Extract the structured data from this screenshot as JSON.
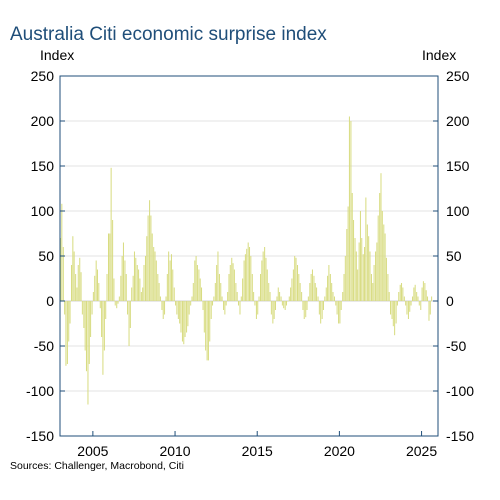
{
  "title": "Australia Citi economic surprise index",
  "source": "Sources: Challenger, Macrobond, Citi",
  "colors": {
    "bar": "#d8dc82",
    "frame": "#1f4e79",
    "grid": "#e3e3e3",
    "title": "#1f4e79"
  },
  "chart_data": {
    "type": "bar",
    "title": "Australia Citi economic surprise index",
    "ylabel_left": "Index",
    "ylabel_right": "Index",
    "ylim": [
      -150,
      250
    ],
    "y_ticks": [
      -150,
      -100,
      -50,
      0,
      50,
      100,
      150,
      200,
      250
    ],
    "xlim": [
      2003.0,
      2026.0
    ],
    "x_ticks": [
      2005,
      2010,
      2015,
      2020,
      2025
    ],
    "grid": true,
    "legend": "none",
    "series": [
      {
        "x": [
          2003.0,
          2003.08,
          2003.17,
          2003.25,
          2003.33,
          2003.42,
          2003.5,
          2003.58,
          2003.67,
          2003.75,
          2003.83,
          2003.92,
          2004.0,
          2004.08,
          2004.17,
          2004.25,
          2004.33,
          2004.42,
          2004.5,
          2004.58,
          2004.67,
          2004.75,
          2004.83,
          2004.92,
          2005.0,
          2005.08,
          2005.17,
          2005.25,
          2005.33,
          2005.42,
          2005.5,
          2005.58,
          2005.67,
          2005.75,
          2005.83,
          2005.92,
          2006.0,
          2006.08,
          2006.17,
          2006.25,
          2006.33,
          2006.42,
          2006.5,
          2006.58,
          2006.67,
          2006.75,
          2006.83,
          2006.92,
          2007.0,
          2007.08,
          2007.17,
          2007.25,
          2007.33,
          2007.42,
          2007.5,
          2007.58,
          2007.67,
          2007.75,
          2007.83,
          2007.92,
          2008.0,
          2008.08,
          2008.17,
          2008.25,
          2008.33,
          2008.42,
          2008.5,
          2008.58,
          2008.67,
          2008.75,
          2008.83,
          2008.92,
          2009.0,
          2009.08,
          2009.17,
          2009.25,
          2009.33,
          2009.42,
          2009.5,
          2009.58,
          2009.67,
          2009.75,
          2009.83,
          2009.92,
          2010.0,
          2010.08,
          2010.17,
          2010.25,
          2010.33,
          2010.42,
          2010.5,
          2010.58,
          2010.67,
          2010.75,
          2010.83,
          2010.92,
          2011.0,
          2011.08,
          2011.17,
          2011.25,
          2011.33,
          2011.42,
          2011.5,
          2011.58,
          2011.67,
          2011.75,
          2011.83,
          2011.92,
          2012.0,
          2012.08,
          2012.17,
          2012.25,
          2012.33,
          2012.42,
          2012.5,
          2012.58,
          2012.67,
          2012.75,
          2012.83,
          2012.92,
          2013.0,
          2013.08,
          2013.17,
          2013.25,
          2013.33,
          2013.42,
          2013.5,
          2013.58,
          2013.67,
          2013.75,
          2013.83,
          2013.92,
          2014.0,
          2014.08,
          2014.17,
          2014.25,
          2014.33,
          2014.42,
          2014.5,
          2014.58,
          2014.67,
          2014.75,
          2014.83,
          2014.92,
          2015.0,
          2015.08,
          2015.17,
          2015.25,
          2015.33,
          2015.42,
          2015.5,
          2015.58,
          2015.67,
          2015.75,
          2015.83,
          2015.92,
          2016.0,
          2016.08,
          2016.17,
          2016.25,
          2016.33,
          2016.42,
          2016.5,
          2016.58,
          2016.67,
          2016.75,
          2016.83,
          2016.92,
          2017.0,
          2017.08,
          2017.17,
          2017.25,
          2017.33,
          2017.42,
          2017.5,
          2017.58,
          2017.67,
          2017.75,
          2017.83,
          2017.92,
          2018.0,
          2018.08,
          2018.17,
          2018.25,
          2018.33,
          2018.42,
          2018.5,
          2018.58,
          2018.67,
          2018.75,
          2018.83,
          2018.92,
          2019.0,
          2019.08,
          2019.17,
          2019.25,
          2019.33,
          2019.42,
          2019.5,
          2019.58,
          2019.67,
          2019.75,
          2019.83,
          2019.92,
          2020.0,
          2020.08,
          2020.17,
          2020.25,
          2020.33,
          2020.42,
          2020.5,
          2020.58,
          2020.67,
          2020.75,
          2020.83,
          2020.92,
          2021.0,
          2021.08,
          2021.17,
          2021.25,
          2021.33,
          2021.42,
          2021.5,
          2021.58,
          2021.67,
          2021.75,
          2021.83,
          2021.92,
          2022.0,
          2022.08,
          2022.17,
          2022.25,
          2022.33,
          2022.42,
          2022.5,
          2022.58,
          2022.67,
          2022.75,
          2022.83,
          2022.92,
          2023.0,
          2023.08,
          2023.17,
          2023.25,
          2023.33,
          2023.42,
          2023.5,
          2023.58,
          2023.67,
          2023.75,
          2023.83,
          2023.92,
          2024.0,
          2024.08,
          2024.17,
          2024.25,
          2024.33,
          2024.42,
          2024.5,
          2024.58,
          2024.67,
          2024.75,
          2024.83,
          2024.92,
          2025.0,
          2025.08,
          2025.17,
          2025.25,
          2025.33,
          2025.42,
          2025.5,
          2025.58
        ],
        "values": [
          70,
          108,
          60,
          -15,
          -72,
          -70,
          -45,
          -25,
          40,
          72,
          55,
          30,
          15,
          40,
          48,
          32,
          -15,
          -30,
          -55,
          -78,
          -115,
          -70,
          -40,
          -15,
          10,
          28,
          45,
          35,
          20,
          -8,
          -40,
          -82,
          -55,
          -20,
          30,
          75,
          75,
          148,
          90,
          25,
          -5,
          -8,
          -3,
          5,
          28,
          50,
          65,
          45,
          30,
          -15,
          -50,
          -30,
          15,
          28,
          55,
          48,
          40,
          35,
          25,
          10,
          15,
          40,
          50,
          72,
          95,
          112,
          95,
          75,
          60,
          55,
          45,
          30,
          20,
          5,
          -10,
          -20,
          -15,
          5,
          30,
          55,
          45,
          52,
          35,
          15,
          -5,
          -15,
          -20,
          -25,
          -35,
          -45,
          -48,
          -40,
          -35,
          -28,
          -15,
          -5,
          5,
          20,
          45,
          50,
          40,
          35,
          25,
          15,
          -10,
          -35,
          -55,
          -66,
          -66,
          -45,
          -20,
          -5,
          5,
          20,
          40,
          55,
          30,
          20,
          5,
          -10,
          -15,
          -5,
          10,
          30,
          40,
          48,
          42,
          35,
          20,
          10,
          -5,
          -15,
          5,
          25,
          45,
          52,
          58,
          65,
          60,
          50,
          30,
          10,
          -5,
          -20,
          -15,
          5,
          30,
          45,
          55,
          60,
          48,
          35,
          20,
          10,
          -15,
          -25,
          -20,
          -10,
          5,
          15,
          10,
          5,
          -5,
          -8,
          -10,
          -5,
          0,
          5,
          15,
          25,
          35,
          50,
          48,
          40,
          30,
          20,
          10,
          -10,
          -20,
          -18,
          -10,
          5,
          20,
          30,
          35,
          28,
          20,
          15,
          5,
          -15,
          -25,
          -20,
          -10,
          5,
          15,
          28,
          40,
          30,
          20,
          10,
          5,
          -5,
          -15,
          -25,
          -25,
          -10,
          10,
          30,
          50,
          80,
          105,
          205,
          200,
          120,
          90,
          70,
          55,
          35,
          65,
          100,
          70,
          52,
          60,
          115,
          85,
          72,
          55,
          30,
          20,
          40,
          55,
          65,
          95,
          120,
          142,
          100,
          85,
          75,
          48,
          30,
          10,
          -15,
          -20,
          -28,
          -38,
          -25,
          -5,
          10,
          18,
          20,
          15,
          5,
          -5,
          -15,
          -20,
          -12,
          -5,
          5,
          15,
          18,
          10,
          5,
          -5,
          -10,
          15,
          22,
          20,
          12,
          5,
          -22,
          -15,
          5
        ]
      }
    ]
  }
}
